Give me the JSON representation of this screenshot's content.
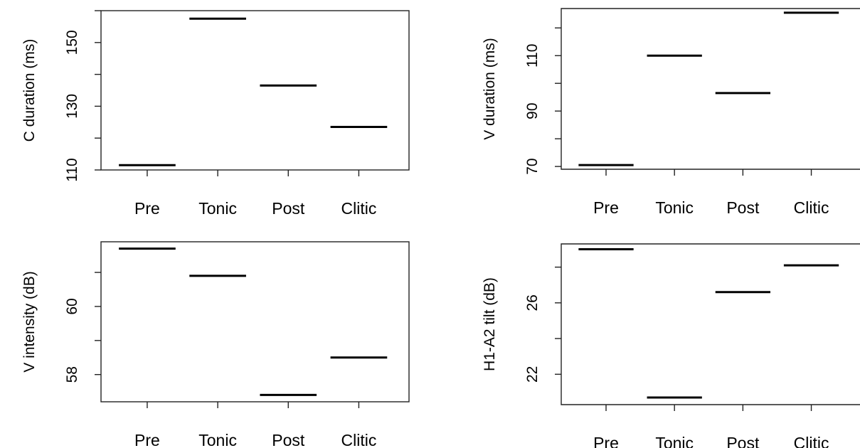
{
  "chart_data": [
    {
      "type": "scatter",
      "marker": "horizontal-line",
      "categories": [
        "Pre",
        "Tonic",
        "Post",
        "Clitic"
      ],
      "values": [
        111.5,
        157.5,
        136.5,
        123.5
      ],
      "ylabel": "C duration (ms)",
      "yticks": [
        110,
        130,
        150
      ],
      "ylim": [
        110,
        160
      ],
      "grid": false,
      "color": "#000000"
    },
    {
      "type": "scatter",
      "marker": "horizontal-line",
      "categories": [
        "Pre",
        "Tonic",
        "Post",
        "Clitic"
      ],
      "values": [
        70.5,
        110,
        96.5,
        125.5
      ],
      "ylabel": "V duration (ms)",
      "yticks": [
        70,
        90,
        110
      ],
      "ylim": [
        69,
        127
      ],
      "grid": false,
      "color": "#000000"
    },
    {
      "type": "scatter",
      "marker": "horizontal-line",
      "categories": [
        "Pre",
        "Tonic",
        "Post",
        "Clitic"
      ],
      "values": [
        61.7,
        60.9,
        57.4,
        58.5
      ],
      "ylabel": "V intensity (dB)",
      "yticks": [
        58,
        60
      ],
      "ylim": [
        57.2,
        61.9
      ],
      "grid": false,
      "color": "#000000"
    },
    {
      "type": "scatter",
      "marker": "horizontal-line",
      "categories": [
        "Pre",
        "Tonic",
        "Post",
        "Clitic"
      ],
      "values": [
        29.0,
        20.7,
        26.6,
        28.1
      ],
      "ylabel": "H1-A2 tilt (dB)",
      "yticks": [
        22,
        26
      ],
      "ylim": [
        20.3,
        29.3
      ],
      "grid": false,
      "color": "#000000"
    }
  ]
}
